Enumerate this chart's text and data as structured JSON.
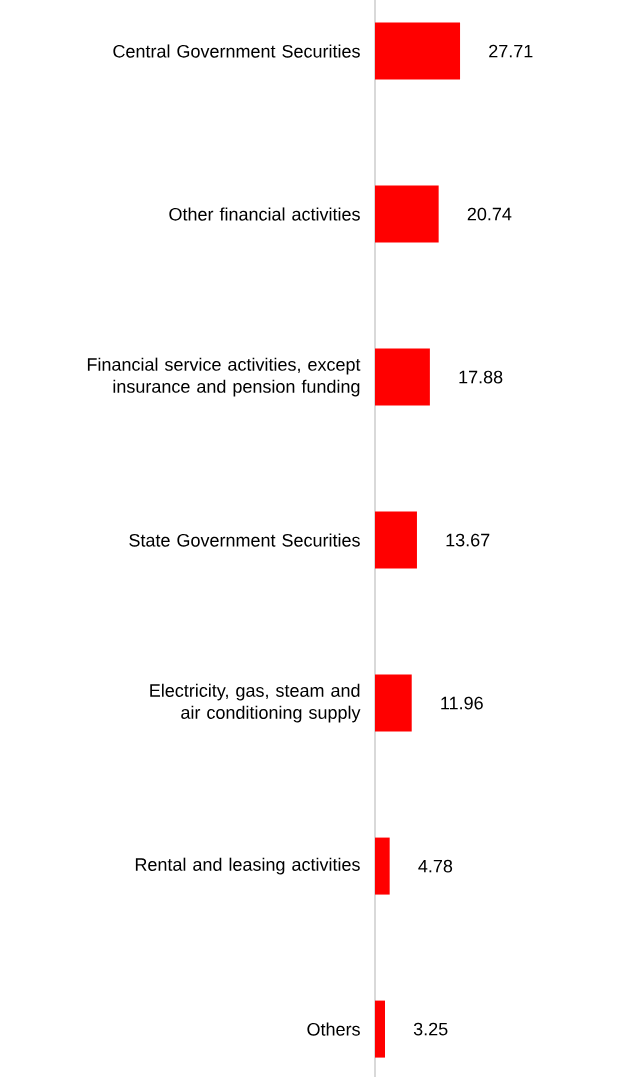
{
  "chart_data": {
    "type": "bar",
    "orientation": "horizontal",
    "categories": [
      "Central Government Securities",
      "Other financial activities",
      "Financial service activities, except insurance and pension funding",
      "State Government Securities",
      "Electricity, gas, steam and air conditioning supply",
      "Rental and leasing activities",
      "Others"
    ],
    "values": [
      27.71,
      20.74,
      17.88,
      13.67,
      11.96,
      4.78,
      3.25
    ],
    "color": "#ff0000",
    "data_labels": true
  }
}
